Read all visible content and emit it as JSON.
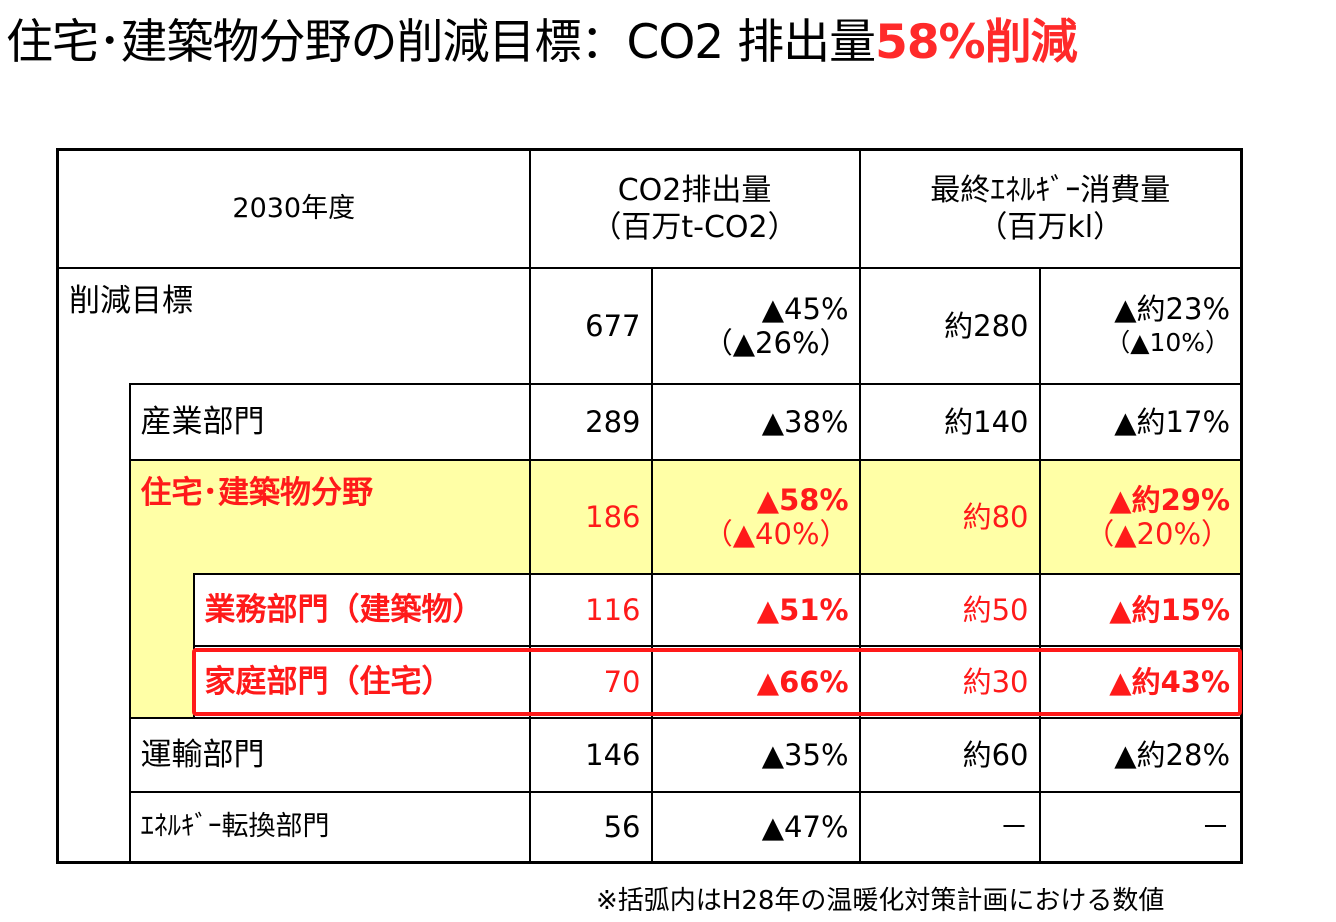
{
  "title": {
    "main": "住宅･建築物分野の削減目標：CO2 排出量",
    "highlight": "58%削減"
  },
  "table": {
    "header": {
      "year": "2030年度",
      "co2_line1": "CO2排出量",
      "co2_line2": "（百万t-CO2）",
      "energy_line1": "最終ｴﾈﾙｷﾞｰ消費量",
      "energy_line2": "（百万kl）"
    },
    "rows": {
      "total": {
        "label": "削減目標",
        "co2": "677",
        "co2_pct": "▲45%",
        "co2_pct2": "（▲26%）",
        "energy": "約280",
        "energy_pct": "▲約23%",
        "energy_pct2": "（▲10%）"
      },
      "industry": {
        "label": "産業部門",
        "co2": "289",
        "co2_pct": "▲38%",
        "energy": "約140",
        "energy_pct": "▲約17%"
      },
      "building": {
        "label": "住宅･建築物分野",
        "co2": "186",
        "co2_pct": "▲58%",
        "co2_pct2": "（▲40%）",
        "energy": "約80",
        "energy_pct": "▲約29%",
        "energy_pct2": "（▲20%）"
      },
      "business": {
        "label": "業務部門（建築物）",
        "co2": "116",
        "co2_pct": "▲51%",
        "energy": "約50",
        "energy_pct": "▲約15%"
      },
      "household": {
        "label": "家庭部門（住宅）",
        "co2": "70",
        "co2_pct": "▲66%",
        "energy": "約30",
        "energy_pct": "▲約43%"
      },
      "transport": {
        "label": "運輸部門",
        "co2": "146",
        "co2_pct": "▲35%",
        "energy": "約60",
        "energy_pct": "▲約28%"
      },
      "energy_conv": {
        "label": "ｴﾈﾙｷﾞｰ転換部門",
        "co2": "56",
        "co2_pct": "▲47%",
        "energy": "－",
        "energy_pct": "－"
      }
    }
  },
  "note": "※括弧内はH28年の温暖化対策計画における数値",
  "colors": {
    "highlight_red": "#ff1a1a",
    "building_bg": "#ffffa6"
  }
}
